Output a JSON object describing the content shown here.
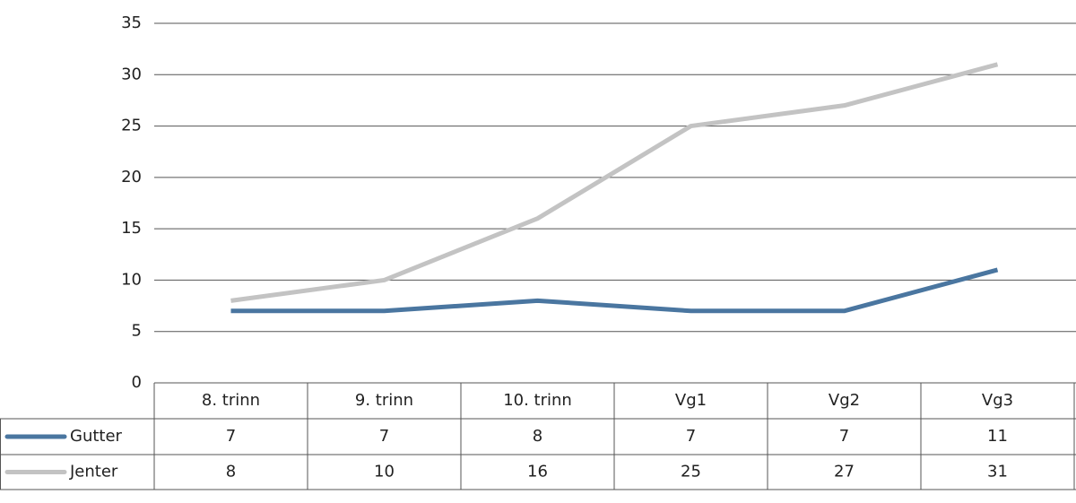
{
  "chart_data": {
    "type": "line",
    "categories": [
      "8. trinn",
      "9. trinn",
      "10. trinn",
      "Vg1",
      "Vg2",
      "Vg3"
    ],
    "series": [
      {
        "name": "Gutter",
        "color": "#4a76a0",
        "values": [
          7,
          7,
          8,
          7,
          7,
          11
        ]
      },
      {
        "name": "Jenter",
        "color": "#c3c3c3",
        "values": [
          8,
          10,
          16,
          25,
          27,
          31
        ]
      }
    ],
    "ylim": [
      0,
      35
    ],
    "yticks": [
      0,
      5,
      10,
      15,
      20,
      25,
      30,
      35
    ],
    "grid": true,
    "data_table": true
  }
}
